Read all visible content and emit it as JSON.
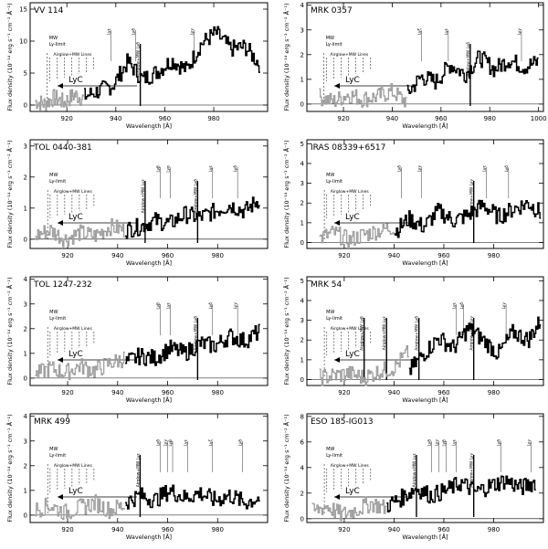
{
  "figure": {
    "ylabel_main": "Flux density (10",
    "ylabel_exp": "-14",
    "ylabel_units": " erg s",
    "ylabel_exp2": "-1",
    "ylabel_units2": " cm",
    "ylabel_exp3": "-2",
    "ylabel_angstrom": "Å",
    "ylabel_exp4": "-1",
    "ylabel_close": ")",
    "xlabel": "Wavelength [Å]"
  },
  "chart_data": [
    {
      "type": "line",
      "title": "VV 114",
      "xlim": [
        905,
        1002
      ],
      "ylim": [
        -1,
        16
      ],
      "xticks": [
        920,
        940,
        960,
        980
      ],
      "yticks": [
        0,
        5,
        10,
        15
      ],
      "xlabel": "Wavelength [Å]",
      "ylabel": "Flux density (10⁻¹⁴ erg s⁻¹ cm⁻² Å⁻¹)",
      "mw_limit_label": [
        "MW",
        "Ly-limit"
      ],
      "airglow_label": "Airglow+MW Lines",
      "lyc_label": "LyC",
      "lines": [
        {
          "label": "Lyε",
          "x": 938
        },
        {
          "label": "Lyδ",
          "x": 948
        },
        {
          "label": "Airglow+MW Lyδ",
          "x": 950
        },
        {
          "label": "Lyγ",
          "x": 972
        }
      ],
      "series": [
        {
          "color": "#a0a0a0",
          "x": [
            907,
            911,
            915,
            919,
            923,
            927
          ],
          "y": [
            0.6,
            0.2,
            1.2,
            0.4,
            1.6,
            1.0
          ]
        },
        {
          "color": "#000000",
          "x": [
            927,
            933,
            939,
            945,
            951,
            957,
            963,
            969,
            975,
            981,
            987,
            993,
            999
          ],
          "y": [
            1.3,
            2.2,
            3.1,
            6.8,
            4.0,
            5.2,
            7.0,
            5.5,
            9.6,
            11.3,
            8.8,
            9.1,
            6.3
          ]
        }
      ]
    },
    {
      "type": "line",
      "title": "MRK 0357",
      "xlim": [
        905,
        1002
      ],
      "ylim": [
        -0.3,
        4.1
      ],
      "xticks": [
        920,
        940,
        960,
        980,
        1000
      ],
      "yticks": [
        0,
        1,
        2,
        3,
        4
      ],
      "xlabel": "Wavelength [Å]",
      "ylabel": "Flux density (10⁻¹⁴ erg s⁻¹ cm⁻² Å⁻¹)",
      "mw_limit_label": [
        "MW",
        "Ly-limit"
      ],
      "airglow_label": "Airglow+MW Lines",
      "lyc_label": "LyC",
      "lines": [
        {
          "label": "Lyζ",
          "x": 952
        },
        {
          "label": "Lyε",
          "x": 963
        },
        {
          "label": "Airglow+MW Lyδ",
          "x": 972
        },
        {
          "label": "Lyγ",
          "x": 993
        }
      ],
      "series": [
        {
          "color": "#a0a0a0",
          "x": [
            910,
            916,
            922,
            928,
            934,
            940,
            946
          ],
          "y": [
            0.3,
            0.1,
            0.4,
            0.2,
            0.3,
            0.5,
            0.1
          ]
        },
        {
          "color": "#000000",
          "x": [
            946,
            952,
            958,
            964,
            970,
            976,
            982,
            988,
            994,
            1000
          ],
          "y": [
            0.4,
            1.1,
            0.9,
            1.6,
            1.2,
            1.9,
            1.4,
            1.8,
            1.5,
            1.7
          ]
        }
      ]
    },
    {
      "type": "line",
      "title": "TOL 0440-381",
      "xlim": [
        905,
        1000
      ],
      "ylim": [
        -0.3,
        3.2
      ],
      "xticks": [
        920,
        940,
        960,
        980
      ],
      "yticks": [
        0,
        1,
        2,
        3
      ],
      "xlabel": "Wavelength [Å]",
      "ylabel": "Flux density (10⁻¹⁴ erg s⁻¹ cm⁻² Å⁻¹)",
      "mw_limit_label": [
        "MW",
        "Ly-limit"
      ],
      "airglow_label": "Airglow+MW Lines",
      "lyc_label": "LyC",
      "lines": [
        {
          "label": "Airglow+MW Lyε",
          "x": 951
        },
        {
          "label": "Lyβ",
          "x": 957
        },
        {
          "label": "Lyα",
          "x": 961
        },
        {
          "label": "Airglow+MW Lyδ",
          "x": 972
        },
        {
          "label": "Lyε",
          "x": 978
        },
        {
          "label": "Lyδ",
          "x": 988
        }
      ],
      "series": [
        {
          "color": "#a0a0a0",
          "x": [
            907,
            913,
            919,
            925,
            931,
            937,
            943
          ],
          "y": [
            0.1,
            0.3,
            0.0,
            0.2,
            0.1,
            0.4,
            0.3
          ]
        },
        {
          "color": "#000000",
          "x": [
            943,
            949,
            955,
            961,
            967,
            973,
            979,
            985,
            991,
            997
          ],
          "y": [
            0.3,
            0.4,
            0.6,
            0.5,
            0.8,
            0.7,
            0.9,
            1.1,
            0.9,
            1.3
          ]
        }
      ]
    },
    {
      "type": "line",
      "title": "IRAS 08339+6517",
      "xlim": [
        905,
        1000
      ],
      "ylim": [
        -0.3,
        5.2
      ],
      "xticks": [
        920,
        940,
        960,
        980
      ],
      "yticks": [
        0,
        1,
        2,
        3,
        4,
        5
      ],
      "xlabel": "Wavelength [Å]",
      "ylabel": "Flux density (10⁻¹⁴ erg s⁻¹ cm⁻² Å⁻¹)",
      "mw_limit_label": [
        "MW",
        "Ly-limit"
      ],
      "airglow_label": "Airglow+MW Lines",
      "lyc_label": "LyC",
      "lines": [
        {
          "label": "Lyδ",
          "x": 943
        },
        {
          "label": "Lyγ",
          "x": 951
        },
        {
          "label": "Airglow+MW Lyγ",
          "x": 972
        },
        {
          "label": "Lyε",
          "x": 977
        },
        {
          "label": "Lyδ",
          "x": 986
        }
      ],
      "series": [
        {
          "color": "#a0a0a0",
          "x": [
            910,
            916,
            922,
            928,
            934,
            940
          ],
          "y": [
            0.2,
            0.5,
            0.1,
            0.4,
            0.6,
            0.8
          ]
        },
        {
          "color": "#000000",
          "x": [
            940,
            946,
            952,
            958,
            964,
            970,
            976,
            982,
            988,
            994,
            999
          ],
          "y": [
            0.5,
            1.2,
            0.8,
            1.6,
            1.1,
            1.4,
            1.9,
            1.3,
            1.7,
            2.0,
            1.5
          ]
        }
      ]
    },
    {
      "type": "line",
      "title": "TOL 1247-232",
      "xlim": [
        905,
        1000
      ],
      "ylim": [
        -0.3,
        4.1
      ],
      "xticks": [
        920,
        940,
        960,
        980
      ],
      "yticks": [
        0,
        1,
        2,
        3,
        4
      ],
      "xlabel": "Wavelength [Å]",
      "ylabel": "Flux density (10⁻¹⁴ erg s⁻¹ cm⁻² Å⁻¹)",
      "mw_limit_label": [
        "MW",
        "Ly-limit"
      ],
      "airglow_label": "Airglow+MW Lines",
      "lyc_label": "LyC",
      "lines": [
        {
          "label": "Lyβ",
          "x": 957
        },
        {
          "label": "Lyε",
          "x": 961
        },
        {
          "label": "Airglow+MW Lyδ",
          "x": 972
        },
        {
          "label": "Lyδ",
          "x": 978
        },
        {
          "label": "Lyγ",
          "x": 988
        }
      ],
      "series": [
        {
          "color": "#a0a0a0",
          "x": [
            907,
            913,
            919,
            925,
            931,
            937,
            943
          ],
          "y": [
            0.1,
            0.4,
            0.2,
            0.5,
            0.3,
            0.6,
            0.8
          ]
        },
        {
          "color": "#000000",
          "x": [
            943,
            949,
            955,
            961,
            967,
            973,
            979,
            985,
            991,
            997
          ],
          "y": [
            0.6,
            0.9,
            0.8,
            1.2,
            1.0,
            1.4,
            1.3,
            1.7,
            1.5,
            1.9
          ]
        }
      ]
    },
    {
      "type": "line",
      "title": "MRK 54",
      "xlim": [
        905,
        1000
      ],
      "ylim": [
        -0.3,
        5.2
      ],
      "xticks": [
        920,
        940,
        960,
        980
      ],
      "yticks": [
        0,
        1,
        2,
        3,
        4,
        5
      ],
      "xlabel": "Wavelength [Å]",
      "ylabel": "Flux density (10⁻¹⁴ erg s⁻¹ cm⁻² Å⁻¹)",
      "mw_limit_label": [
        "MW",
        "Ly-limit"
      ],
      "airglow_label": "Airglow+MW Lines",
      "lyc_label": "LyC",
      "lines": [
        {
          "label": "Airglow+MW Lyβ",
          "x": 928
        },
        {
          "label": "Airglow+MW Lyε",
          "x": 937
        },
        {
          "label": "Airglow+MW Lyδ",
          "x": 950
        },
        {
          "label": "Lyε",
          "x": 965
        },
        {
          "label": "Lyδ",
          "x": 968
        },
        {
          "label": "Airglow+MW Lyγ",
          "x": 972
        },
        {
          "label": "Lyγ",
          "x": 985
        }
      ],
      "series": [
        {
          "color": "#a0a0a0",
          "x": [
            910,
            916,
            922,
            928,
            934,
            940,
            946
          ],
          "y": [
            0.1,
            0.2,
            0.3,
            0.1,
            0.4,
            0.6,
            1.4
          ]
        },
        {
          "color": "#000000",
          "x": [
            946,
            952,
            958,
            964,
            970,
            976,
            982,
            988,
            994,
            999
          ],
          "y": [
            0.4,
            1.3,
            2.1,
            1.6,
            2.6,
            2.0,
            1.3,
            2.4,
            2.0,
            3.0
          ]
        }
      ]
    },
    {
      "type": "line",
      "title": "MRK 499",
      "xlim": [
        905,
        1000
      ],
      "ylim": [
        -0.3,
        4.1
      ],
      "xticks": [
        920,
        940,
        960,
        980
      ],
      "yticks": [
        0,
        1,
        2,
        3,
        4
      ],
      "xlabel": "Wavelength [Å]",
      "ylabel": "Flux density (10⁻¹⁴ erg s⁻¹ cm⁻² Å⁻¹)",
      "mw_limit_label": [
        "MW",
        "Ly-limit"
      ],
      "airglow_label": "Airglow+MW Lines",
      "lyc_label": "LyC",
      "lines": [
        {
          "label": "Airglow+MW Lyε",
          "x": 949
        },
        {
          "label": "Lyδ",
          "x": 957
        },
        {
          "label": "Lyγ",
          "x": 960
        },
        {
          "label": "Lyβ",
          "x": 962
        },
        {
          "label": "Lyε",
          "x": 968
        },
        {
          "label": "Lyζ",
          "x": 978
        },
        {
          "label": "Lyδ",
          "x": 990
        }
      ],
      "series": [
        {
          "color": "#a0a0a0",
          "x": [
            907,
            913,
            919,
            925,
            931,
            937,
            943
          ],
          "y": [
            0.2,
            0.4,
            0.1,
            0.3,
            0.5,
            0.2,
            0.4
          ]
        },
        {
          "color": "#000000",
          "x": [
            943,
            949,
            955,
            961,
            967,
            973,
            979,
            985,
            991,
            997
          ],
          "y": [
            0.5,
            0.8,
            0.6,
            1.0,
            0.7,
            0.9,
            0.6,
            0.8,
            0.5,
            0.7
          ]
        }
      ]
    },
    {
      "type": "line",
      "title": "ESO 185-IG013",
      "xlim": [
        905,
        1000
      ],
      "ylim": [
        -0.3,
        8.2
      ],
      "xticks": [
        920,
        940,
        960,
        980
      ],
      "yticks": [
        0,
        2,
        4,
        6,
        8
      ],
      "xlabel": "Wavelength [Å]",
      "ylabel": "Flux density (10⁻¹⁴ erg s⁻¹ cm⁻² Å⁻¹)",
      "mw_limit_label": [
        "MW",
        "Ly-limit"
      ],
      "airglow_label": "Airglow+MW Lines",
      "lyc_label": "LyC",
      "lines": [
        {
          "label": "Airglow+MW Lyε",
          "x": 949
        },
        {
          "label": "Lyδ",
          "x": 955
        },
        {
          "label": "Lyγ",
          "x": 958
        },
        {
          "label": "Lyβ",
          "x": 961
        },
        {
          "label": "Lyε",
          "x": 965
        },
        {
          "label": "Airglow+MW Lyγ",
          "x": 972
        },
        {
          "label": "Lyδ",
          "x": 983
        },
        {
          "label": "Lyγ",
          "x": 995
        }
      ],
      "series": [
        {
          "color": "#a0a0a0",
          "x": [
            907,
            913,
            919,
            925,
            931,
            937
          ],
          "y": [
            0.5,
            1.0,
            0.3,
            0.7,
            1.2,
            0.8
          ]
        },
        {
          "color": "#000000",
          "x": [
            937,
            943,
            949,
            955,
            961,
            967,
            973,
            979,
            985,
            991,
            997
          ],
          "y": [
            1.0,
            1.6,
            2.4,
            1.8,
            2.2,
            2.8,
            2.1,
            2.6,
            3.0,
            2.4,
            2.9
          ]
        }
      ]
    }
  ]
}
